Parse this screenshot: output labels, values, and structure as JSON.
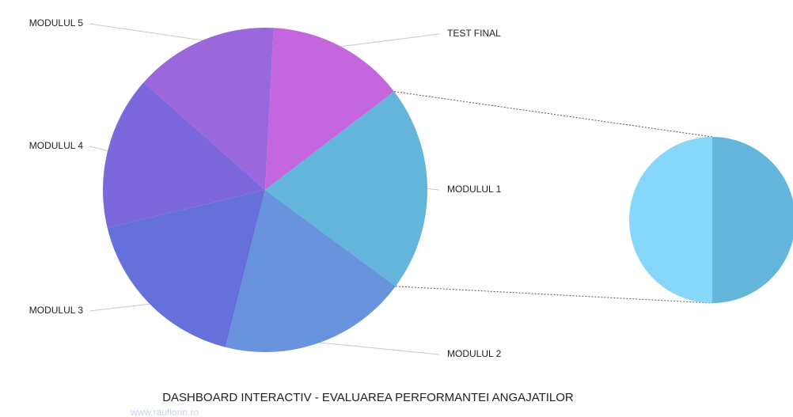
{
  "chart_data": {
    "type": "pie-of-pie",
    "title": "DASHBOARD INTERACTIV - EVALUAREA PERFORMANTEI ANGAJATILOR",
    "subtitle": "www.rauflorin.ro",
    "categories": [
      "TEST FINAL",
      "MODULUL 1",
      "MODULUL 2",
      "MODULUL 3",
      "MODULUL 4",
      "MODULUL 5"
    ],
    "values": [
      13.8,
      20.5,
      18.8,
      17.3,
      15.3,
      14.3
    ],
    "colors": [
      "#c466dd",
      "#63b5dc",
      "#6994dd",
      "#6670db",
      "#7c67dc",
      "#9b67dc"
    ],
    "secondary": {
      "categories": [
        null,
        null
      ],
      "values": [
        10.25,
        10.25
      ],
      "colors": [
        "#63b5dc",
        "#87d7fb"
      ]
    }
  }
}
